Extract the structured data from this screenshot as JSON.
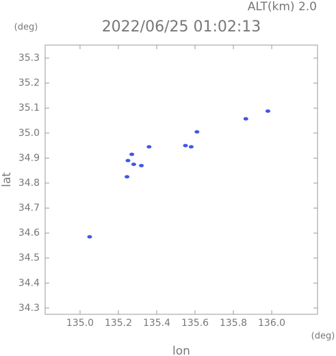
{
  "chart_data": {
    "type": "scatter",
    "title": "2022/06/25 01:02:13",
    "subtitle": "ALT(km) 2.0",
    "x_label": "lon",
    "y_label": "lat",
    "x_unit": "(deg)",
    "y_unit": "(deg)",
    "x": [
      135.05,
      135.25,
      135.28,
      135.32,
      135.27,
      135.36,
      135.245,
      135.55,
      135.58,
      135.61,
      135.865,
      135.98
    ],
    "values": [
      34.585,
      34.89,
      34.875,
      34.87,
      34.915,
      34.945,
      34.825,
      34.95,
      34.945,
      35.005,
      35.057,
      35.088
    ],
    "color": "#4156e6",
    "xlim": [
      134.818,
      136.239
    ],
    "ylim": [
      34.275,
      35.352
    ],
    "xticks": [
      {
        "value": 135.0,
        "label": "135.0"
      },
      135.2,
      135.4,
      135.6,
      135.8,
      {
        "value": 136.0,
        "label": "136.0"
      }
    ],
    "yticks": [
      34.3,
      34.4,
      34.5,
      34.6,
      34.7,
      34.8,
      34.9,
      {
        "value": 35.0,
        "label": "35.0"
      },
      35.1,
      35.2,
      35.3
    ],
    "grid": false
  }
}
